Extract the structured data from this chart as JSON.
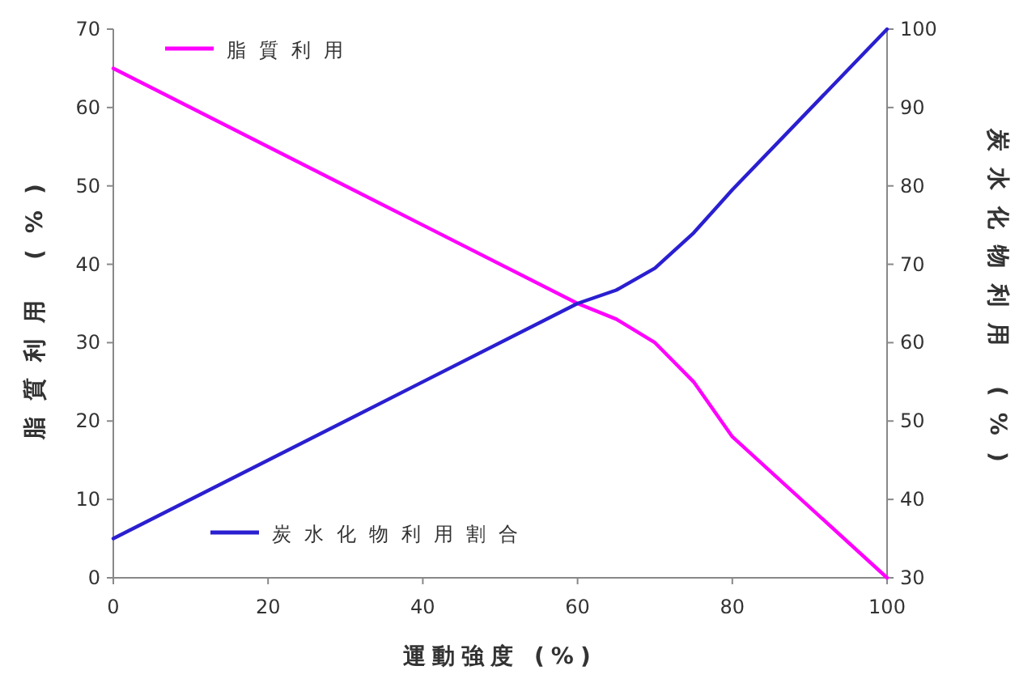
{
  "chart_data": {
    "type": "line",
    "xlabel": "運動強度 (%)",
    "ylabel": "脂質利用 (%)",
    "y2label": "炭水化物利用 (%)",
    "xlim": [
      0,
      100
    ],
    "xticks": [
      0,
      20,
      40,
      60,
      80,
      100
    ],
    "ylim": [
      0,
      70
    ],
    "yticks": [
      0,
      10,
      20,
      30,
      40,
      50,
      60,
      70
    ],
    "y2lim": [
      30,
      100
    ],
    "y2ticks": [
      30,
      40,
      50,
      60,
      70,
      80,
      90,
      100
    ],
    "legend": "left",
    "grid": false,
    "marker": "none",
    "line_style": "solid",
    "series": [
      {
        "name": "脂質利用",
        "color": "#ff00ff",
        "x": [
          0,
          60,
          65,
          70,
          75,
          80,
          100
        ],
        "values": [
          65,
          35,
          33,
          30,
          25,
          18,
          0
        ]
      },
      {
        "name": "炭水化物利用割合",
        "color": "#2a1fd0",
        "axis": "y2",
        "x": [
          0,
          60,
          65,
          70,
          75,
          80,
          100
        ],
        "values": [
          35,
          65,
          66.7,
          69.5,
          74,
          79.5,
          100
        ]
      }
    ]
  }
}
